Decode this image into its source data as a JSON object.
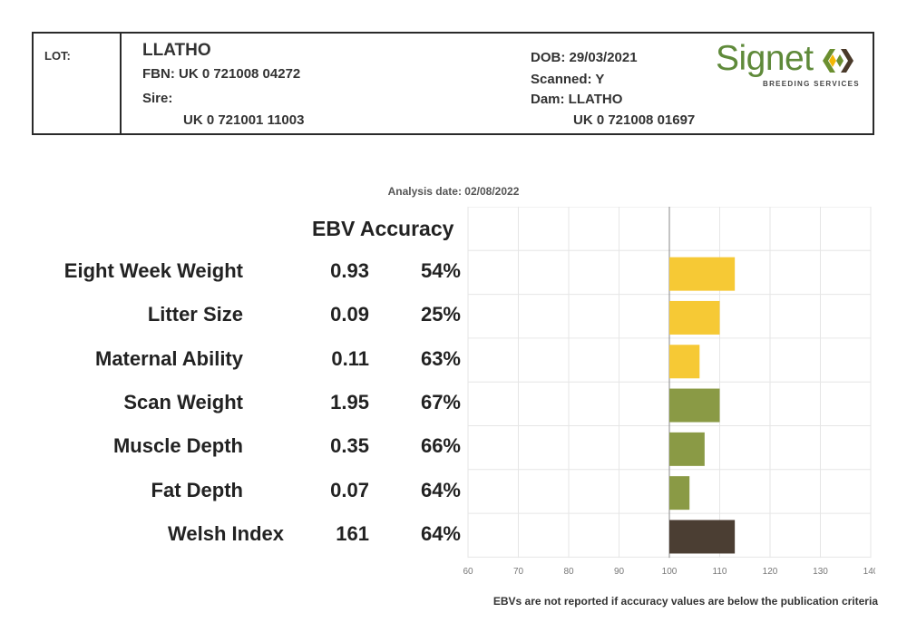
{
  "header": {
    "lot_label": "LOT:",
    "name": "LLATHO",
    "fbn": "FBN: UK 0 721008 04272",
    "sire_label": "Sire:",
    "sire_id": "UK 0 721001 11003",
    "dob": "DOB: 29/03/2021",
    "scanned": "Scanned: Y",
    "dam": "Dam: LLATHO",
    "dam_id": "UK 0 721008 01697",
    "logo_text": "Signet",
    "logo_sub": "BREEDING SERVICES",
    "logo_colors": [
      "#6b8f2f",
      "#f2b705",
      "#4a3a2a"
    ]
  },
  "analysis_date": "Analysis date: 02/08/2022",
  "column_header": "EBV Accuracy",
  "footnote": "EBVs are not reported if accuracy values are below the publication criteria",
  "chart_data": {
    "type": "bar",
    "orientation": "horizontal",
    "baseline": 100,
    "xlim": [
      60,
      140
    ],
    "xticks": [
      "60",
      "70",
      "80",
      "90",
      "100",
      "110",
      "120",
      "130",
      "140"
    ],
    "grid": true,
    "categories": [
      "Eight Week Weight",
      "Litter Size",
      "Maternal Ability",
      "Scan Weight",
      "Muscle Depth",
      "Fat Depth",
      "Welsh Index"
    ],
    "ebv": [
      "0.93",
      "0.09",
      "0.11",
      "1.95",
      "0.35",
      "0.07",
      "161"
    ],
    "accuracy": [
      "54%",
      "25%",
      "63%",
      "67%",
      "66%",
      "64%",
      "64%"
    ],
    "values": [
      113,
      110,
      106,
      110,
      107,
      104,
      113
    ],
    "colors": [
      "#f6c935",
      "#f6c935",
      "#f6c935",
      "#8a9a45",
      "#8a9a45",
      "#8a9a45",
      "#4b3e33"
    ]
  }
}
